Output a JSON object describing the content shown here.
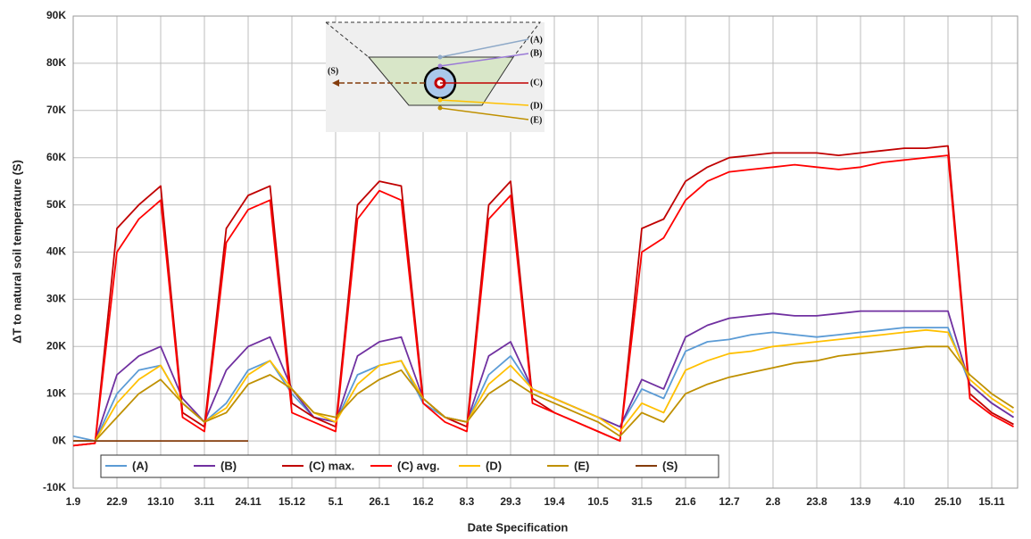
{
  "chart_data": {
    "type": "line",
    "y_label": "ΔT to natural soil temperature (S)",
    "x_label": "Date Specification",
    "categories": [
      "1.9",
      null,
      "22.9",
      null,
      "13.10",
      null,
      "3.11",
      null,
      "24.11",
      null,
      "15.12",
      null,
      "5.1",
      null,
      "26.1",
      null,
      "16.2",
      null,
      "8.3",
      null,
      "29.3",
      null,
      "19.4",
      null,
      "10.5",
      null,
      "31.5",
      null,
      "21.6",
      null,
      "12.7",
      null,
      "2.8",
      null,
      "23.8",
      null,
      "13.9",
      null,
      "4.10",
      null,
      "25.10",
      null,
      "15.11",
      null
    ],
    "ylim": [
      -10,
      90
    ],
    "yticks": [
      {
        "value": -10,
        "label": "-10K"
      },
      {
        "value": 0,
        "label": "0K"
      },
      {
        "value": 10,
        "label": "10K"
      },
      {
        "value": 20,
        "label": "20K"
      },
      {
        "value": 30,
        "label": "30K"
      },
      {
        "value": 40,
        "label": "40K"
      },
      {
        "value": 50,
        "label": "50K"
      },
      {
        "value": 60,
        "label": "60K"
      },
      {
        "value": 70,
        "label": "70K"
      },
      {
        "value": 80,
        "label": "80K"
      },
      {
        "value": 90,
        "label": "90K"
      }
    ],
    "grid": true,
    "series": [
      {
        "name": "(A)",
        "color": "#5b9bd5",
        "values": [
          1,
          0,
          10,
          15,
          16,
          8,
          4,
          8,
          15,
          17,
          10,
          5,
          4,
          14,
          16,
          17,
          8,
          5,
          4,
          14,
          18,
          11,
          9,
          7,
          5,
          3,
          11,
          9,
          19,
          21,
          21.5,
          22.5,
          23,
          22.5,
          22,
          22.5,
          23,
          23.5,
          24,
          24,
          24,
          12,
          8,
          5
        ]
      },
      {
        "name": "(B)",
        "color": "#7030a0",
        "values": [
          0,
          0,
          14,
          18,
          20,
          9,
          4,
          15,
          20,
          22,
          11,
          5,
          4,
          18,
          21,
          22,
          9,
          5,
          4,
          18,
          21,
          11,
          9,
          7,
          5,
          3,
          13,
          11,
          22,
          24.5,
          26,
          26.5,
          27,
          26.5,
          26.5,
          27,
          27.5,
          27.5,
          27.5,
          27.5,
          27.5,
          12,
          8,
          5
        ]
      },
      {
        "name": "(C) max.",
        "color": "#c00000",
        "values": [
          -1,
          -0.5,
          45,
          50,
          54,
          6,
          3,
          45,
          52,
          54,
          8,
          5,
          3,
          50,
          55,
          54,
          9,
          5,
          3,
          50,
          55,
          9,
          6,
          4,
          2,
          0,
          45,
          47,
          55,
          58,
          60,
          60.5,
          61,
          61,
          61,
          60.5,
          61,
          61.5,
          62,
          62,
          62.5,
          10,
          6,
          3.5
        ]
      },
      {
        "name": "(C) avg.",
        "color": "#ff0000",
        "values": [
          -1,
          -0.5,
          40,
          47,
          51,
          5,
          2,
          42,
          49,
          51,
          6,
          4,
          2,
          47,
          53,
          51,
          8,
          4,
          2,
          47,
          52,
          8,
          6,
          4,
          2,
          0,
          40,
          43,
          51,
          55,
          57,
          57.5,
          58,
          58.5,
          58,
          57.5,
          58,
          59,
          59.5,
          60,
          60.5,
          9,
          5.5,
          3
        ]
      },
      {
        "name": "(D)",
        "color": "#ffc000",
        "values": [
          0,
          0,
          8,
          13,
          16,
          8,
          4,
          7,
          14,
          17,
          11,
          6,
          4,
          12,
          16,
          17,
          9,
          5,
          4,
          12,
          16,
          11,
          9,
          7,
          5,
          2,
          8,
          6,
          15,
          17,
          18.5,
          19,
          20,
          20.5,
          21,
          21.5,
          22,
          22.5,
          23,
          23.5,
          23,
          13,
          9,
          6
        ]
      },
      {
        "name": "(E)",
        "color": "#bf9000",
        "values": [
          0,
          0,
          5,
          10,
          13,
          8,
          4,
          6,
          12,
          14,
          11,
          6,
          5,
          10,
          13,
          15,
          9,
          5,
          4,
          10,
          13,
          10,
          8,
          6,
          4,
          1,
          6,
          4,
          10,
          12,
          13.5,
          14.5,
          15.5,
          16.5,
          17,
          18,
          18.5,
          19,
          19.5,
          20,
          20,
          14,
          10,
          7
        ]
      },
      {
        "name": "(S)",
        "color": "#843c0c",
        "values": [
          0,
          0,
          0,
          0,
          0,
          0,
          0,
          0,
          0,
          null,
          null,
          null,
          null,
          null,
          null,
          null,
          null,
          null,
          null,
          null,
          null,
          null,
          null,
          null,
          null,
          null,
          null,
          null,
          null,
          null,
          null,
          null,
          null,
          null,
          null,
          null,
          null,
          null,
          null,
          null,
          null,
          null,
          null,
          null
        ]
      }
    ],
    "inset_labels": [
      "(A)",
      "(B)",
      "(C)",
      "(D)",
      "(E)",
      "(S)"
    ]
  }
}
